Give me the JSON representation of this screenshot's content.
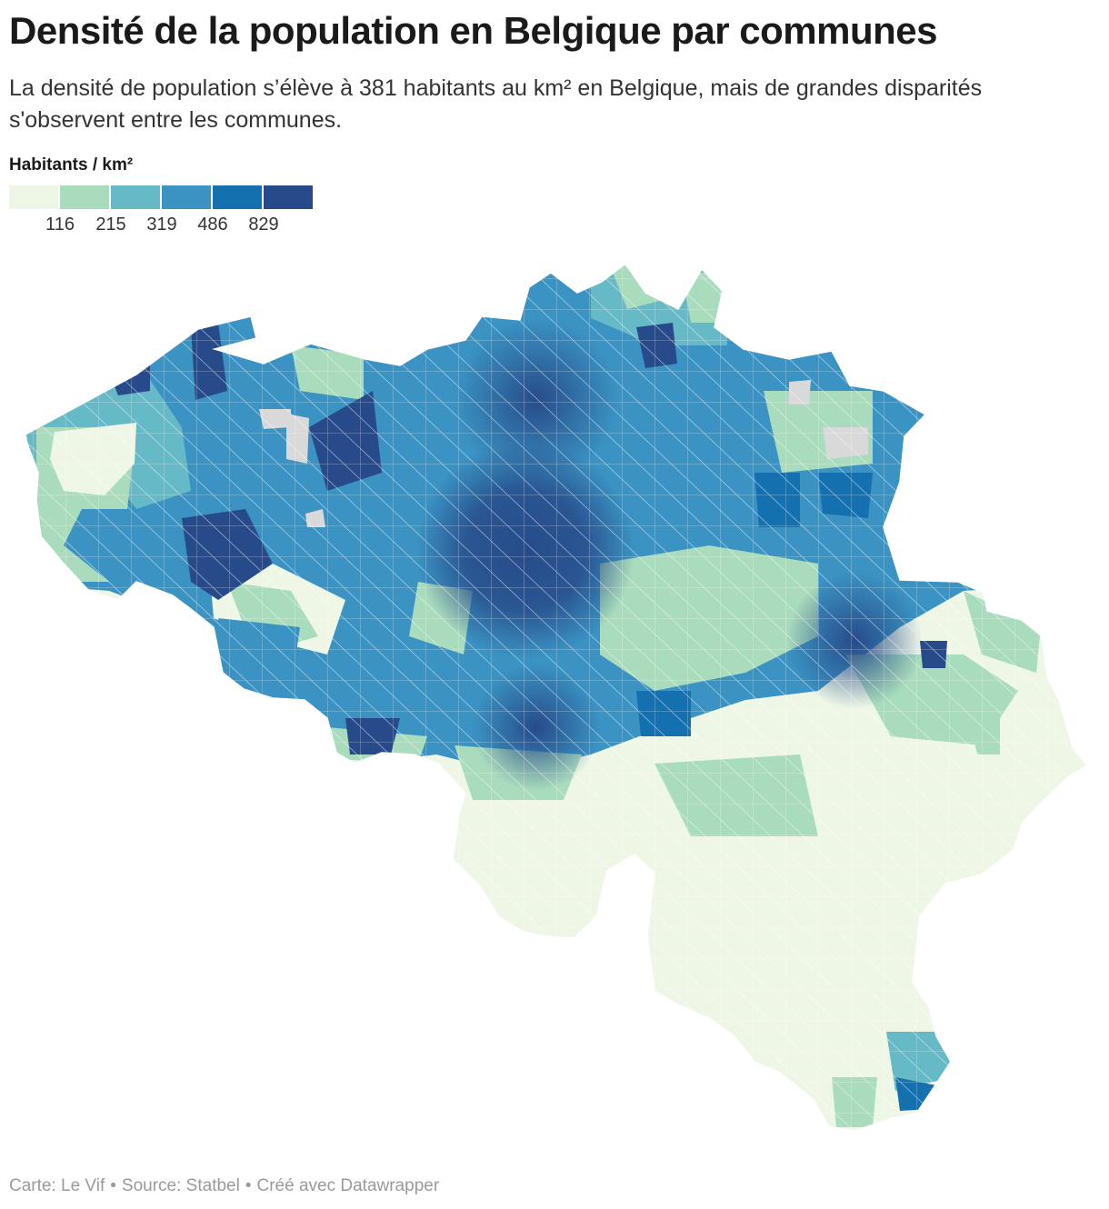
{
  "title": "Densité de la population en Belgique par communes",
  "subtitle": "La densité de population s’élève à 381 habitants au km² en Belgique, mais de grandes disparités s'observent entre les communes.",
  "legend": {
    "title": "Habitants / km²",
    "thresholds": [
      "116",
      "215",
      "319",
      "486",
      "829"
    ],
    "colors": [
      "#eef7e6",
      "#a8dcbc",
      "#66b9c7",
      "#3a93c3",
      "#1570b0",
      "#274b8a"
    ],
    "no_data_color": "#d9d9d9"
  },
  "footer": {
    "map_credit": "Carte: Le Vif",
    "source": "Source: Statbel",
    "tool": "Créé avec Datawrapper"
  }
}
